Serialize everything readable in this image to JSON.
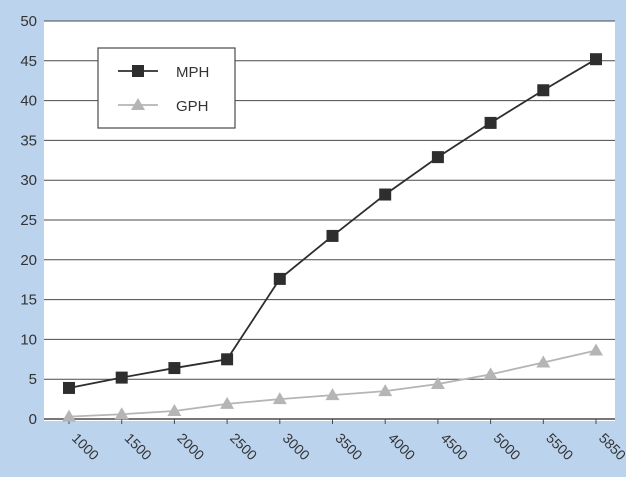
{
  "colors": {
    "background": "#bcd3ee",
    "plot_area": "#ffffff",
    "gridline": "#4a4a4a",
    "axis_text": "#333333",
    "mph_series": "#2e2e2e",
    "gph_series": "#b5b5b5"
  },
  "chart_data": {
    "type": "line",
    "title": "",
    "xlabel": "",
    "ylabel": "",
    "categories": [
      "1000",
      "1500",
      "2000",
      "2500",
      "3000",
      "3500",
      "4000",
      "4500",
      "5000",
      "5500",
      "5850"
    ],
    "ylim": [
      0,
      50
    ],
    "yticks": [
      0,
      5,
      10,
      15,
      20,
      25,
      30,
      35,
      40,
      45,
      50
    ],
    "grid": true,
    "legend_position": "top-left",
    "series": [
      {
        "name": "MPH",
        "marker": "square",
        "color": "#2e2e2e",
        "values": [
          3.9,
          5.2,
          6.4,
          7.5,
          17.6,
          23.0,
          28.2,
          32.9,
          37.2,
          41.3,
          45.2
        ]
      },
      {
        "name": "GPH",
        "marker": "triangle",
        "color": "#b5b5b5",
        "values": [
          0.3,
          0.6,
          1.0,
          1.9,
          2.5,
          3.0,
          3.5,
          4.4,
          5.6,
          7.1,
          8.6
        ]
      }
    ]
  }
}
